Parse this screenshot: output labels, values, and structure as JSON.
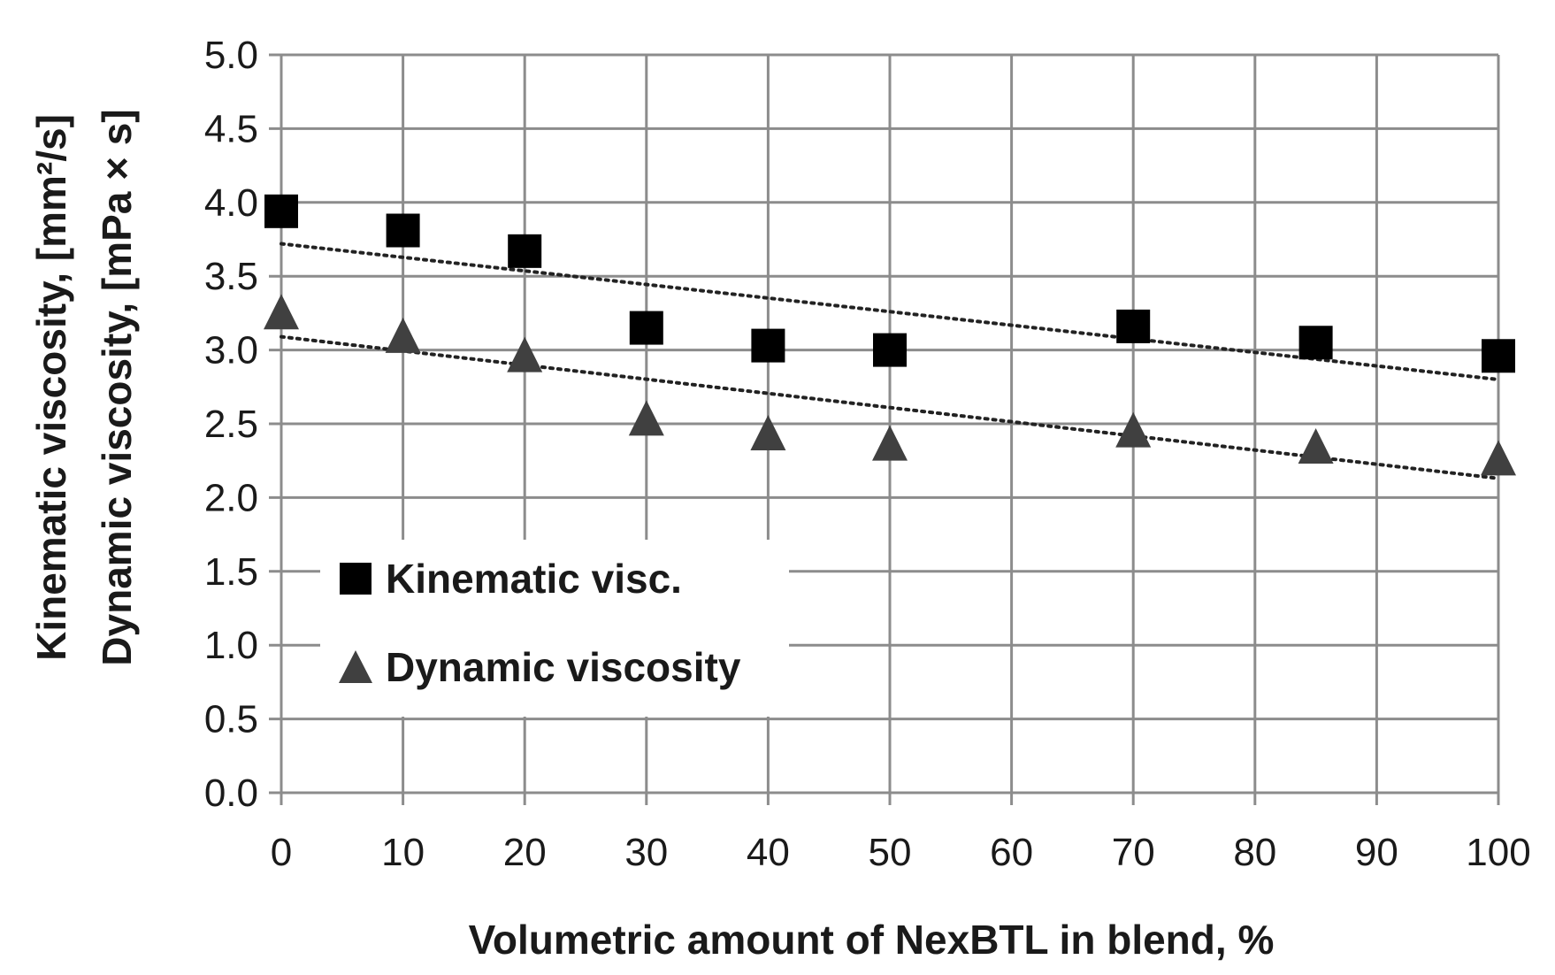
{
  "chart_data": {
    "type": "scatter",
    "title": "",
    "xlabel": "Volumetric amount of NexBTL in blend, %",
    "ylabel_lines": [
      "Kinematic viscosity, [mm²/s]",
      "Dynamic viscosity, [mPa × s]"
    ],
    "xlim": [
      0,
      100
    ],
    "ylim": [
      0,
      5
    ],
    "x_ticks": [
      0,
      10,
      20,
      30,
      40,
      50,
      60,
      70,
      80,
      90,
      100
    ],
    "y_ticks": [
      0,
      0.5,
      1,
      1.5,
      2,
      2.5,
      3,
      3.5,
      4,
      4.5,
      5
    ],
    "x_tick_labels": [
      "0",
      "10",
      "20",
      "30",
      "40",
      "50",
      "60",
      "70",
      "80",
      "90",
      "100"
    ],
    "y_tick_labels": [
      "0.0",
      "0.5",
      "1.0",
      "1.5",
      "2.0",
      "2.5",
      "3.0",
      "3.5",
      "4.0",
      "4.5",
      "5.0"
    ],
    "grid": true,
    "legend_position": "lower-left",
    "series": [
      {
        "name": "Kinematic visc.",
        "marker": "square",
        "color": "#000000",
        "x": [
          0,
          10,
          20,
          30,
          40,
          50,
          70,
          85,
          100
        ],
        "y": [
          3.94,
          3.81,
          3.67,
          3.15,
          3.03,
          3.0,
          3.16,
          3.05,
          2.96
        ],
        "trendline": {
          "style": "dotted",
          "x0": 0,
          "y0": 3.72,
          "x1": 100,
          "y1": 2.8
        }
      },
      {
        "name": "Dynamic viscosity",
        "marker": "triangle",
        "color": "#404040",
        "x": [
          0,
          10,
          20,
          30,
          40,
          50,
          70,
          85,
          100
        ],
        "y": [
          3.26,
          3.1,
          2.97,
          2.54,
          2.44,
          2.37,
          2.46,
          2.35,
          2.27
        ],
        "trendline": {
          "style": "dotted",
          "x0": 0,
          "y0": 3.09,
          "x1": 100,
          "y1": 2.13
        }
      }
    ]
  }
}
